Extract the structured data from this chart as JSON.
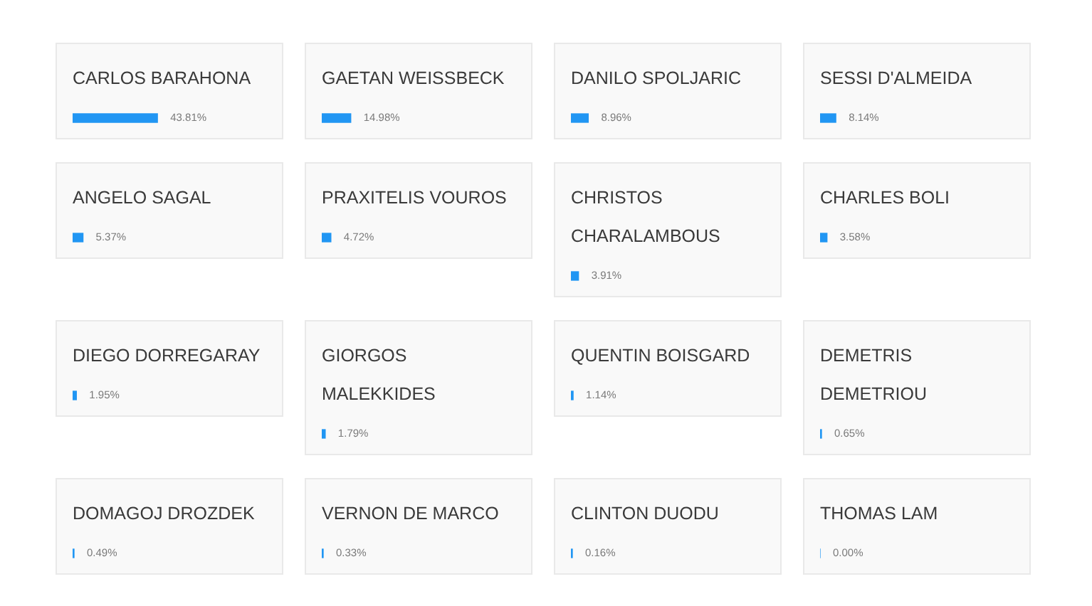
{
  "chart_data": [
    {
      "type": "bar",
      "orientation": "horizontal",
      "tick_labels": "y",
      "color": "#2196f3",
      "categories": [
        "CARLOS BARAHONA",
        "ANGELO SAGAL",
        "DIEGO DORREGARAY",
        "DOMAGOJ DROZDEK"
      ],
      "values": [
        43.81,
        5.37,
        1.95,
        0.49
      ],
      "value_labels": [
        "43.81%",
        "5.37%",
        "1.95%",
        "0.49%"
      ]
    },
    {
      "type": "bar",
      "orientation": "horizontal",
      "tick_labels": "y",
      "color": "#2196f3",
      "categories": [
        "GAETAN WEISSBECK",
        "PRAXITELIS VOUROS",
        "GIORGOS MALEKKIDES",
        "VERNON DE MARCO"
      ],
      "values": [
        14.98,
        4.72,
        1.79,
        0.33
      ],
      "value_labels": [
        "14.98%",
        "4.72%",
        "1.79%",
        "0.33%"
      ]
    },
    {
      "type": "bar",
      "orientation": "horizontal",
      "tick_labels": "y",
      "color": "#2196f3",
      "categories": [
        "DANILO SPOLJARIC",
        "CHRISTOS CHARALAMBOUS",
        "QUENTIN BOISGARD",
        "CLINTON DUODU"
      ],
      "values": [
        8.96,
        3.91,
        1.14,
        0.16
      ],
      "value_labels": [
        "8.96%",
        "3.91%",
        "1.14%",
        "0.16%"
      ]
    },
    {
      "type": "bar",
      "orientation": "horizontal",
      "tick_labels": "y",
      "color": "#2196f3",
      "categories": [
        "SESSI D'ALMEIDA",
        "CHARLES BOLI",
        "DEMETRIS DEMETRIOU",
        "THOMAS LAM"
      ],
      "values": [
        8.14,
        3.58,
        0.65,
        0.0
      ],
      "value_labels": [
        "8.14%",
        "3.58%",
        "0.65%",
        "0.00%"
      ]
    }
  ]
}
